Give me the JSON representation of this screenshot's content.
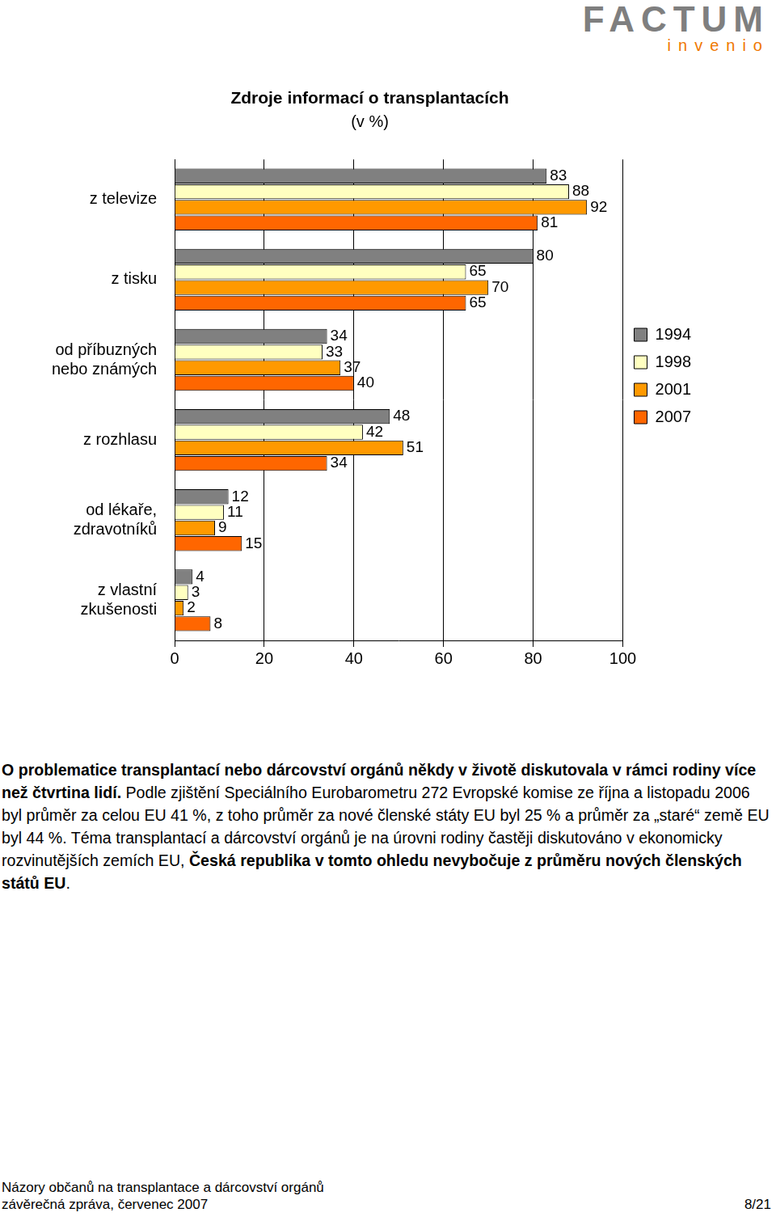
{
  "header": {
    "brand": "FACTUM",
    "brand_sub": "invenio"
  },
  "chart_data": {
    "type": "bar",
    "orientation": "horizontal",
    "title": "Zdroje informací o transplantacích",
    "subtitle": "(v %)",
    "categories": [
      "z televize",
      "z tisku",
      [
        "od příbuzných",
        "nebo známých"
      ],
      "z rozhlasu",
      [
        "od lékaře,",
        "zdravotníků"
      ],
      [
        "z vlastní",
        "zkušenosti"
      ]
    ],
    "series": [
      {
        "name": "1994",
        "color": "#808080",
        "values": [
          83,
          80,
          34,
          48,
          12,
          4
        ]
      },
      {
        "name": "1998",
        "color": "#ffffc0",
        "values": [
          88,
          65,
          33,
          42,
          11,
          3
        ]
      },
      {
        "name": "2001",
        "color": "#ff9900",
        "values": [
          92,
          70,
          37,
          51,
          9,
          2
        ]
      },
      {
        "name": "2007",
        "color": "#ff6600",
        "values": [
          81,
          65,
          40,
          34,
          15,
          8
        ]
      }
    ],
    "xlim": [
      0,
      100
    ],
    "xticks": [
      0,
      20,
      40,
      60,
      80,
      100
    ],
    "grid": true,
    "legend": "right",
    "data_labels": true
  },
  "text": [
    {
      "bold": true,
      "text": "O problematice transplantací nebo dárcovství orgánů někdy v životě diskutovala v rámci rodiny více než čtvrtina lidí."
    },
    {
      "bold": false,
      "text": " Podle zjištění Speciálního Eurobarometru 272 Evropské komise ze října a listopadu 2006 byl průměr za celou EU 41 %, z toho průměr za nové členské státy EU byl 25 % a průměr za „staré“ země EU byl 44 %. Téma transplantací a dárcovství orgánů je na úrovni rodiny častěji diskutováno v ekonomicky rozvinutějších zemích EU, "
    },
    {
      "bold": true,
      "text": "Česká republika v tomto ohledu nevybočuje z průměru nových členských států EU"
    },
    {
      "bold": false,
      "text": "."
    }
  ],
  "footer": {
    "lines": [
      "Názory občanů na transplantace a dárcovství orgánů",
      "závěrečná zpráva, červenec 2007"
    ],
    "page": "8/21"
  }
}
